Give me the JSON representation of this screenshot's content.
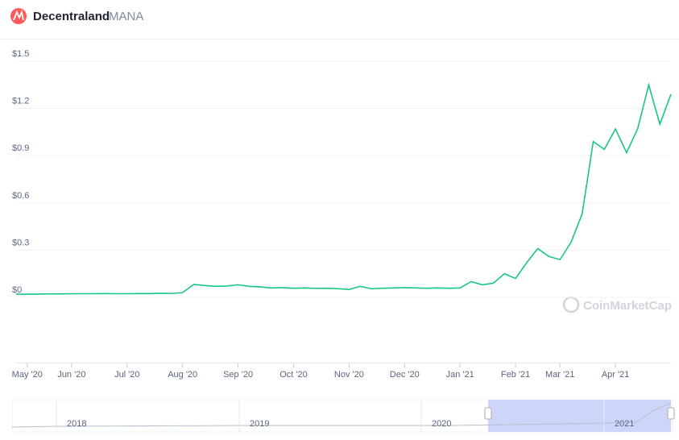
{
  "header": {
    "name": "Decentraland",
    "symbol": "MANA"
  },
  "watermark": "CoinMarketCap",
  "chart_data": {
    "type": "line",
    "categories": [
      null,
      "May '20",
      null,
      null,
      null,
      "Jun '20",
      null,
      null,
      null,
      null,
      "Jul '20",
      null,
      null,
      null,
      null,
      "Aug '20",
      null,
      null,
      null,
      null,
      "Sep '20",
      null,
      null,
      null,
      null,
      "Oct '20",
      null,
      null,
      null,
      null,
      "Nov '20",
      null,
      null,
      null,
      null,
      "Dec '20",
      null,
      null,
      null,
      null,
      "Jan '21",
      null,
      null,
      null,
      null,
      "Feb '21",
      null,
      null,
      null,
      "Mar '21",
      null,
      null,
      null,
      null,
      "Apr '21",
      null,
      null,
      null,
      null,
      null
    ],
    "series": [
      {
        "name": "MANA",
        "color": "#16c784",
        "values": [
          0.02,
          0.02,
          0.021,
          0.022,
          0.022,
          0.023,
          0.023,
          0.023,
          0.024,
          0.023,
          0.023,
          0.024,
          0.024,
          0.026,
          0.025,
          0.03,
          0.082,
          0.075,
          0.07,
          0.072,
          0.08,
          0.07,
          0.066,
          0.06,
          0.062,
          0.058,
          0.06,
          0.057,
          0.058,
          0.055,
          0.05,
          0.07,
          0.055,
          0.058,
          0.06,
          0.062,
          0.06,
          0.058,
          0.06,
          0.058,
          0.06,
          0.1,
          0.08,
          0.09,
          0.15,
          0.12,
          0.22,
          0.31,
          0.26,
          0.24,
          0.35,
          0.53,
          0.99,
          0.94,
          1.07,
          0.92,
          1.07,
          1.35,
          1.1,
          1.29
        ]
      }
    ],
    "ylim": [
      0,
      1.5
    ],
    "yticks": [
      {
        "value": 0,
        "label": "$0"
      },
      {
        "value": 0.3,
        "label": "$0.3"
      },
      {
        "value": 0.6,
        "label": "$0.6"
      },
      {
        "value": 0.9,
        "label": "$0.9"
      },
      {
        "value": 1.2,
        "label": "$1.2"
      },
      {
        "value": 1.5,
        "label": "$1.5"
      }
    ],
    "grid": true
  },
  "navigator": {
    "labels": [
      "2018",
      "2019",
      "2020",
      "2021"
    ]
  }
}
